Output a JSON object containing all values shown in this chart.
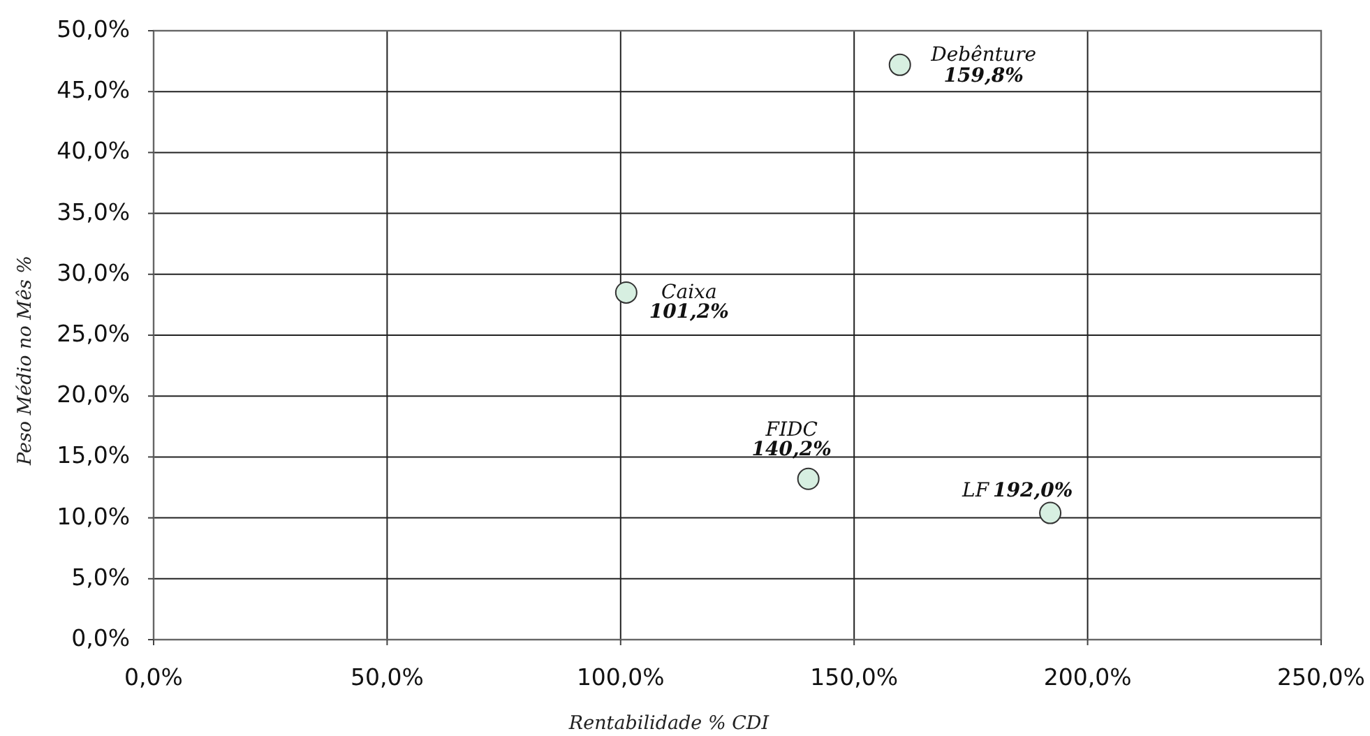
{
  "chart_data": {
    "type": "scatter",
    "xlabel": "Rentabilidade % CDI",
    "ylabel": "Peso Médio no Mês %",
    "xlim": [
      0,
      250
    ],
    "xticks": [
      {
        "value": 0,
        "label": "0,0%"
      },
      {
        "value": 50,
        "label": "50,0%"
      },
      {
        "value": 100,
        "label": "100,0%"
      },
      {
        "value": 150,
        "label": "150,0%"
      },
      {
        "value": 200,
        "label": "200,0%"
      },
      {
        "value": 250,
        "label": "250,0%"
      }
    ],
    "ylim": [
      0,
      50
    ],
    "yticks": [
      {
        "value": 0,
        "label": "0,0%"
      },
      {
        "value": 5,
        "label": "5,0%"
      },
      {
        "value": 10,
        "label": "10,0%"
      },
      {
        "value": 15,
        "label": "15,0%"
      },
      {
        "value": 20,
        "label": "20,0%"
      },
      {
        "value": 25,
        "label": "25,0%"
      },
      {
        "value": 30,
        "label": "30,0%"
      },
      {
        "value": 35,
        "label": "35,0%"
      },
      {
        "value": 40,
        "label": "40,0%"
      },
      {
        "value": 45,
        "label": "45,0%"
      },
      {
        "value": 50,
        "label": "50,0%"
      }
    ],
    "grid": true,
    "marker": "circle",
    "series": [
      {
        "name": "Caixa",
        "color": "#d7efe1",
        "x": [
          101.2
        ],
        "values": [
          28.5
        ]
      },
      {
        "name": "Debênture",
        "color": "#d7efe1",
        "x": [
          159.8
        ],
        "values": [
          47.2
        ]
      },
      {
        "name": "FIDC",
        "color": "#d7efe1",
        "x": [
          140.2
        ],
        "values": [
          13.2
        ]
      },
      {
        "name": "LF",
        "color": "#d7efe1",
        "x": [
          192.0
        ],
        "values": [
          10.4
        ]
      }
    ],
    "annotations": [
      {
        "text": "101,2%",
        "x": 101.2,
        "y": 28.5
      },
      {
        "text": "159,8%",
        "x": 159.8,
        "y": 47.2
      },
      {
        "text": "140,2%",
        "x": 140.2,
        "y": 13.2
      },
      {
        "text": "192,0%",
        "x": 192.0,
        "y": 10.4
      }
    ]
  }
}
